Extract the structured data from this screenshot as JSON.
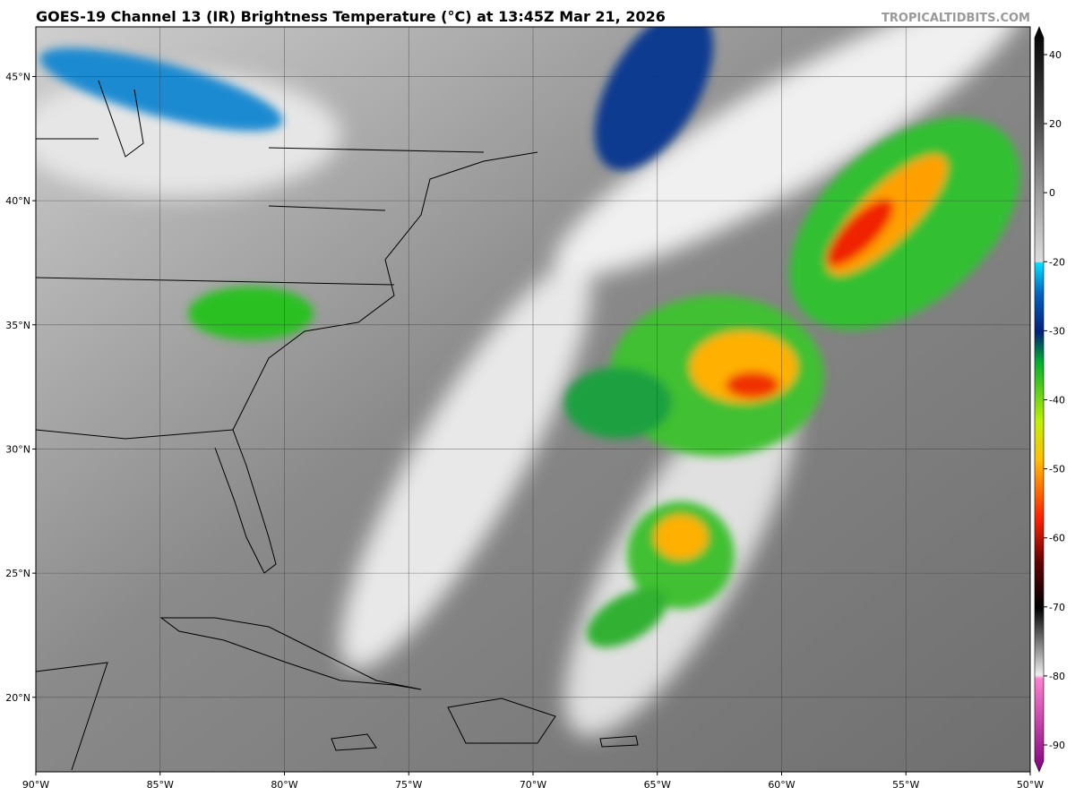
{
  "header": {
    "title": "GOES-19 Channel 13 (IR) Brightness Temperature (°C) at 13:45Z Mar 21, 2026",
    "watermark": "TROPICALTIDBITS.COM"
  },
  "map": {
    "lon_range": [
      -90,
      -50
    ],
    "lat_range": [
      17,
      47
    ],
    "lon_ticks": [
      {
        "value": -90,
        "label": "90°W"
      },
      {
        "value": -85,
        "label": "85°W"
      },
      {
        "value": -80,
        "label": "80°W"
      },
      {
        "value": -75,
        "label": "75°W"
      },
      {
        "value": -70,
        "label": "70°W"
      },
      {
        "value": -65,
        "label": "65°W"
      },
      {
        "value": -60,
        "label": "60°W"
      },
      {
        "value": -55,
        "label": "55°W"
      },
      {
        "value": -50,
        "label": "50°W"
      }
    ],
    "lat_ticks": [
      {
        "value": 45,
        "label": "45°N"
      },
      {
        "value": 40,
        "label": "40°N"
      },
      {
        "value": 35,
        "label": "35°N"
      },
      {
        "value": 30,
        "label": "30°N"
      },
      {
        "value": 25,
        "label": "25°N"
      },
      {
        "value": 20,
        "label": "20°N"
      }
    ]
  },
  "colorbar": {
    "ticks": [
      40,
      20,
      0,
      -20,
      -30,
      -40,
      -50,
      -60,
      -70,
      -80,
      -90
    ]
  }
}
